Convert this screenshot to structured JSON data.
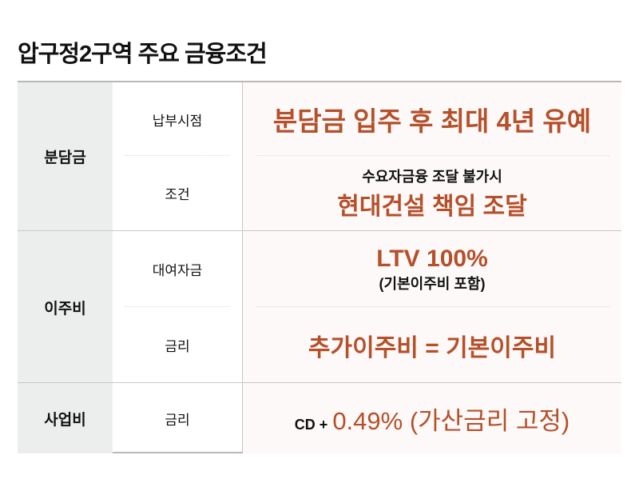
{
  "title": "압구정2구역 주요 금융조건",
  "colors": {
    "accent": "#b5502a",
    "category_bg": "#eceeee",
    "value_bg": "#fcf9f8"
  },
  "rows": [
    {
      "category": "분담금",
      "items": [
        {
          "label": "납부시점",
          "value": "분담금 입주 후 최대 4년 유예"
        },
        {
          "label": "조건",
          "note": "수요자금융 조달 불가시",
          "value": "현대건설 책임 조달"
        }
      ]
    },
    {
      "category": "이주비",
      "items": [
        {
          "label": "대여자금",
          "value": "LTV 100%",
          "note": "(기본이주비 포함)"
        },
        {
          "label": "금리",
          "value": "추가이주비 = 기본이주비"
        }
      ]
    },
    {
      "category": "사업비",
      "items": [
        {
          "label": "금리",
          "prefix": "CD +",
          "value": "0.49% (가산금리 고정)"
        }
      ]
    }
  ]
}
